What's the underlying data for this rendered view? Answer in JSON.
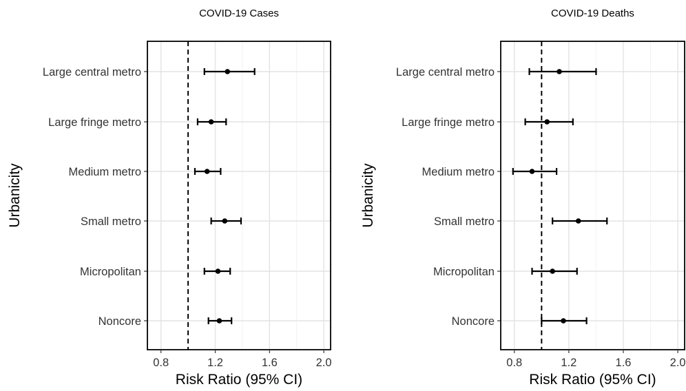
{
  "chart_data": [
    {
      "type": "scatter",
      "title": "COVID-19 Cases",
      "xlabel": "Risk Ratio (95% CI)",
      "ylabel": "Urbanicity",
      "xlim": [
        0.7,
        2.05
      ],
      "x_ticks": [
        "0.8",
        "1.2",
        "1.6",
        "2.0"
      ],
      "reference_line": 1.0,
      "grid": true,
      "categories": [
        "Large central metro",
        "Large fringe metro",
        "Medium metro",
        "Small metro",
        "Micropolitan",
        "Noncore"
      ],
      "estimates": [
        1.29,
        1.17,
        1.14,
        1.27,
        1.22,
        1.23
      ],
      "lower": [
        1.12,
        1.07,
        1.05,
        1.17,
        1.12,
        1.15
      ],
      "upper": [
        1.49,
        1.28,
        1.24,
        1.39,
        1.31,
        1.32
      ]
    },
    {
      "type": "scatter",
      "title": "COVID-19 Deaths",
      "xlabel": "Risk Ratio (95% CI)",
      "ylabel": "Urbanicity",
      "xlim": [
        0.7,
        2.05
      ],
      "x_ticks": [
        "0.8",
        "1.2",
        "1.6",
        "2.0"
      ],
      "reference_line": 1.0,
      "grid": true,
      "categories": [
        "Large central metro",
        "Large fringe metro",
        "Medium metro",
        "Small metro",
        "Micropolitan",
        "Noncore"
      ],
      "estimates": [
        1.13,
        1.04,
        0.93,
        1.27,
        1.08,
        1.16
      ],
      "lower": [
        0.91,
        0.88,
        0.79,
        1.08,
        0.93,
        1.0
      ],
      "upper": [
        1.4,
        1.23,
        1.11,
        1.48,
        1.26,
        1.33
      ]
    }
  ]
}
